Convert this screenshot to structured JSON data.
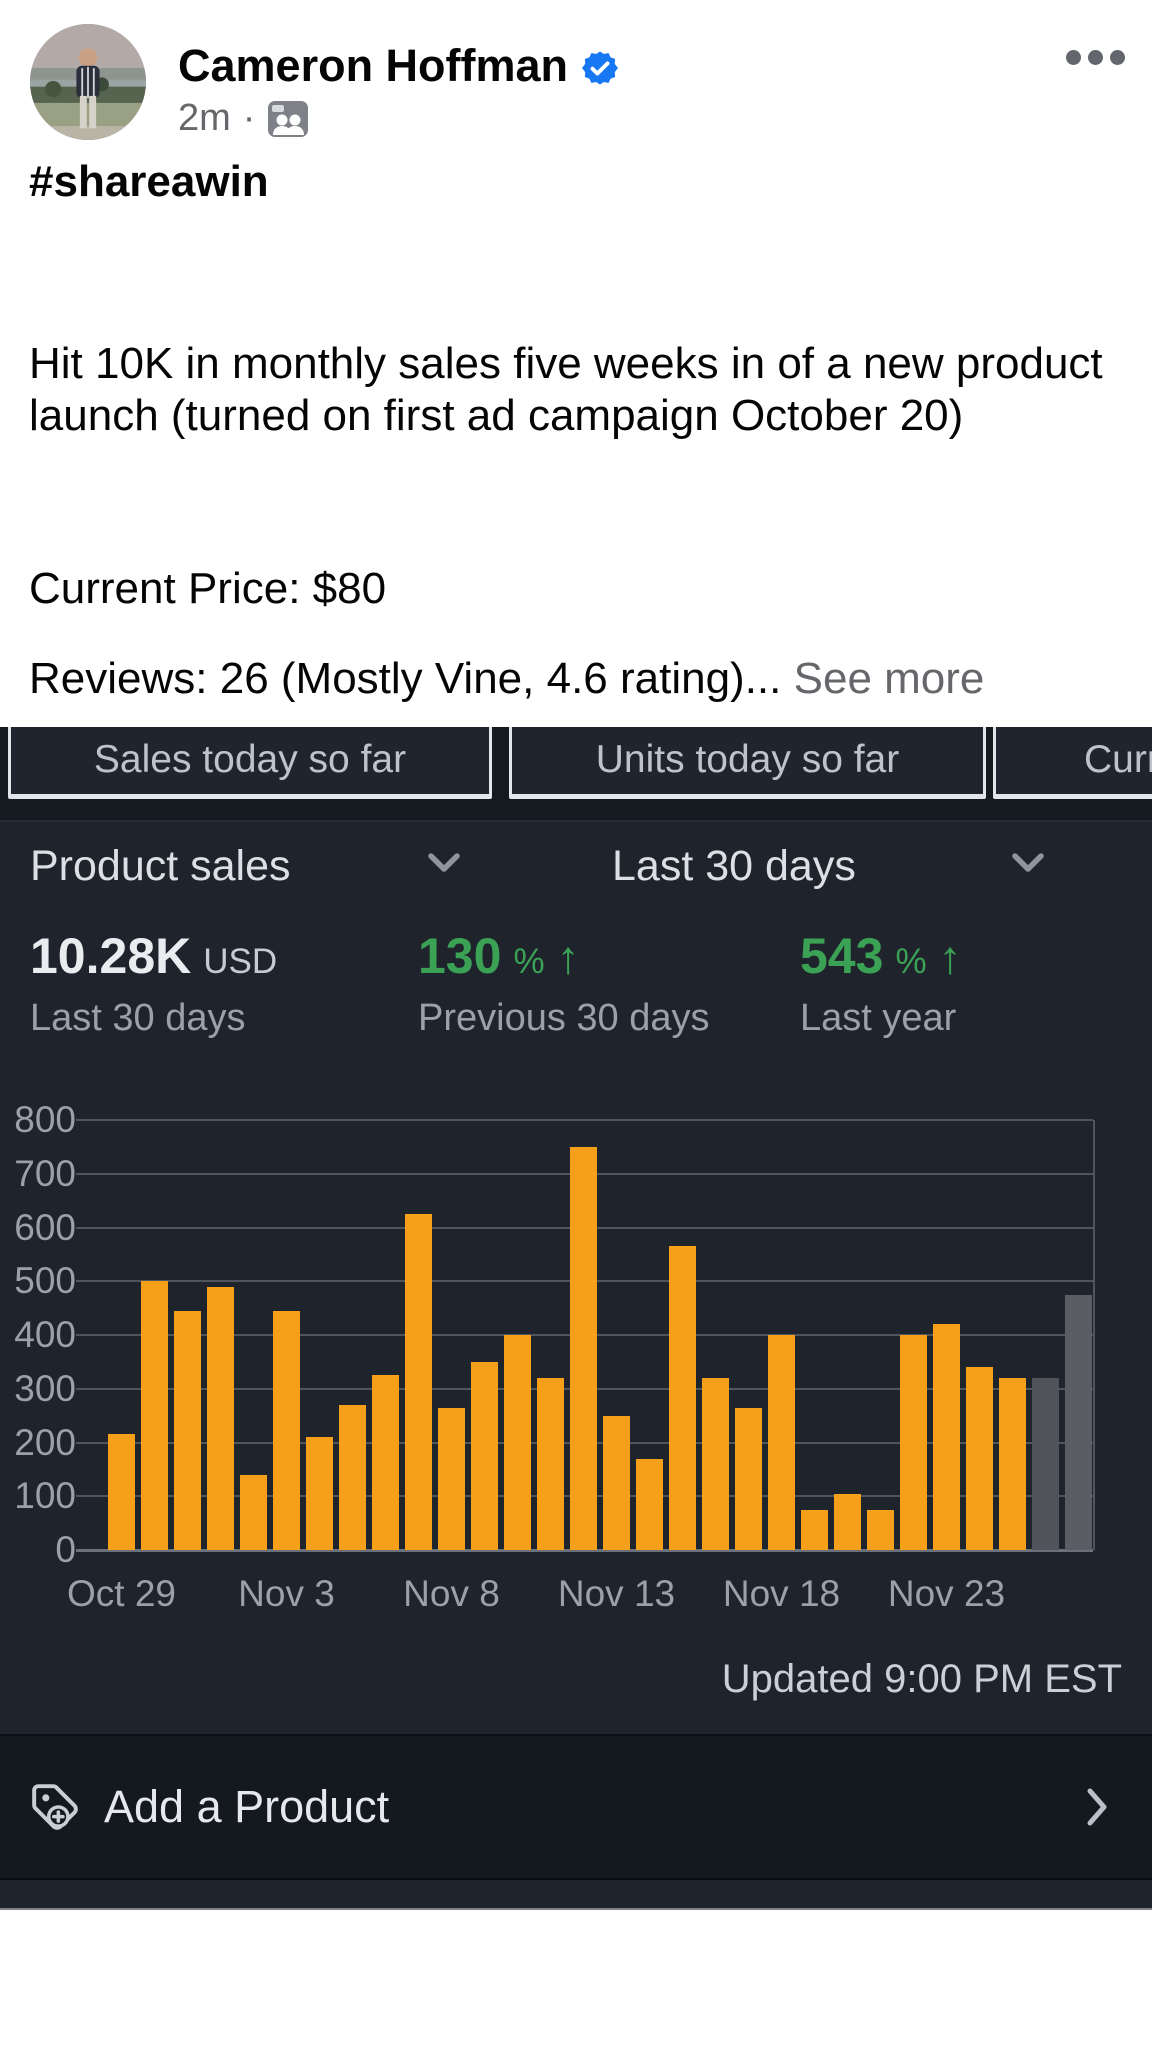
{
  "post": {
    "author": "Cameron Hoffman",
    "timestamp": "2m",
    "timestamp_separator": "·",
    "hashtag": "#shareawin",
    "body": "Hit 10K in monthly sales five weeks in of a new product launch (turned on first ad campaign October 20)",
    "price_line": "Current Price: $80",
    "reviews_line": "Reviews: 26 (Mostly Vine, 4.6 rating)...",
    "see_more": "See more",
    "badge_color": "#1877F2",
    "secondary_text_color": "#65676B"
  },
  "dashboard": {
    "tabs": [
      {
        "label": "Sales today so far"
      },
      {
        "label": "Units today so far"
      },
      {
        "label": "Curr"
      }
    ],
    "metric_selector": {
      "label": "Product sales"
    },
    "range_selector": {
      "label": "Last 30 days"
    },
    "metrics": [
      {
        "value": "10.28K",
        "unit": "USD",
        "arrow": "",
        "label": "Last 30 days"
      },
      {
        "value": "130",
        "unit": "%",
        "arrow": "↑",
        "label": "Previous 30 days"
      },
      {
        "value": "543",
        "unit": "%",
        "arrow": "↑",
        "label": "Last year"
      }
    ],
    "updated": "Updated 9:00 PM EST",
    "add_product": {
      "label": "Add a Product"
    },
    "colors": {
      "background": "#1E232C",
      "strip_background": "#151A21",
      "green": "#3BA255",
      "light_text": "#DCE0E5",
      "muted_text": "#99A1AA"
    }
  },
  "chart_data": {
    "type": "bar",
    "title": "Product sales — Last 30 days",
    "xlabel": "",
    "ylabel": "",
    "ylim": [
      0,
      800
    ],
    "y_ticks": [
      0,
      100,
      200,
      300,
      400,
      500,
      600,
      700,
      800
    ],
    "grid": true,
    "legend": "none",
    "x": [
      "Oct 29",
      "Oct 30",
      "Oct 31",
      "Nov 1",
      "Nov 2",
      "Nov 3",
      "Nov 4",
      "Nov 5",
      "Nov 6",
      "Nov 7",
      "Nov 8",
      "Nov 9",
      "Nov 10",
      "Nov 11",
      "Nov 12",
      "Nov 13",
      "Nov 14",
      "Nov 15",
      "Nov 16",
      "Nov 17",
      "Nov 18",
      "Nov 19",
      "Nov 20",
      "Nov 21",
      "Nov 22",
      "Nov 23",
      "Nov 24",
      "Nov 25",
      "Nov 26",
      "Nov 27"
    ],
    "values": [
      215,
      500,
      445,
      490,
      140,
      445,
      210,
      270,
      325,
      625,
      265,
      350,
      400,
      320,
      750,
      250,
      170,
      565,
      320,
      265,
      400,
      75,
      105,
      75,
      400,
      420,
      340,
      320,
      320,
      475
    ],
    "x_tick_labels": [
      "Oct 29",
      "Nov 3",
      "Nov 8",
      "Nov 13",
      "Nov 18",
      "Nov 23"
    ],
    "x_tick_indices": [
      0,
      5,
      10,
      15,
      20,
      25
    ],
    "bar_color": "#F6A019",
    "overrides": {
      "28": "#50545A",
      "29": "#5A5E64"
    }
  }
}
